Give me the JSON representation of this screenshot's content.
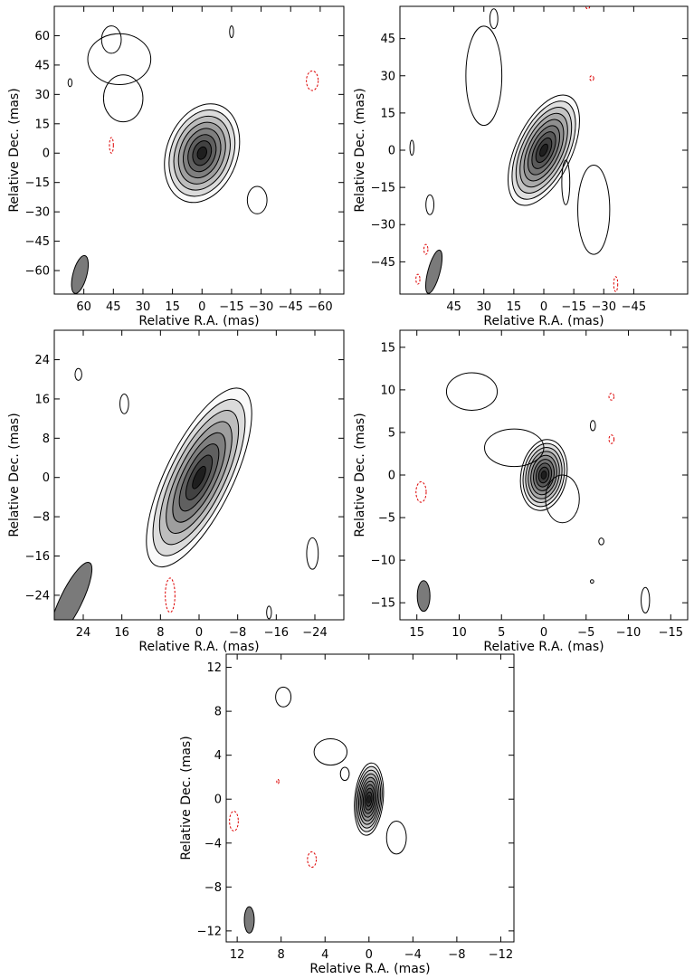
{
  "chart_data": [
    {
      "type": "contour",
      "xlabel": "Relative R.A. (mas)",
      "ylabel": "Relative Dec. (mas)",
      "xlim": [
        75,
        -72
      ],
      "ylim": [
        -72,
        75
      ],
      "x_ticks": [
        60,
        45,
        30,
        15,
        0,
        -15,
        -30,
        -45,
        -60
      ],
      "y_ticks": [
        60,
        45,
        30,
        15,
        0,
        -15,
        -30,
        -45,
        -60
      ],
      "x_tick_labels": [
        "60",
        "45",
        "30",
        "15",
        "0",
        "−15",
        "−30",
        "−45",
        "−60"
      ],
      "y_tick_labels": [
        "60",
        "45",
        "30",
        "15",
        "0",
        "−15",
        "−30",
        "−45",
        "−60"
      ],
      "core": {
        "x": 0,
        "y": 0,
        "semi_major": 26,
        "semi_minor": 18,
        "pa_deg": 20,
        "levels": 8
      },
      "contours": [
        {
          "x": 42,
          "y": 48,
          "rx": 16,
          "ry": 13
        },
        {
          "x": 46,
          "y": 58,
          "rx": 5,
          "ry": 7
        },
        {
          "x": 40,
          "y": 28,
          "rx": 10,
          "ry": 12
        },
        {
          "x": -28,
          "y": -24,
          "rx": 5,
          "ry": 7
        },
        {
          "x": 67,
          "y": 36,
          "rx": 1,
          "ry": 2
        },
        {
          "x": -15,
          "y": 62,
          "rx": 1,
          "ry": 3
        }
      ],
      "negative_contours": [
        {
          "x": 46,
          "y": 4,
          "rx": 1,
          "ry": 4
        },
        {
          "x": -56,
          "y": 37,
          "rx": 3,
          "ry": 5
        }
      ],
      "beam": {
        "x": 62,
        "y": -62,
        "major": 20,
        "minor": 7,
        "pa_deg": 15
      },
      "colors": {
        "contour": "#000000",
        "negative": "#dd0000",
        "beam": "#7a7a7a"
      }
    },
    {
      "type": "contour",
      "xlabel": "Relative R.A. (mas)",
      "ylabel": "Relative Dec. (mas)",
      "xlim": [
        72,
        -72
      ],
      "ylim": [
        -58,
        58
      ],
      "x_ticks": [
        45,
        30,
        15,
        0,
        -15,
        -30,
        -45
      ],
      "y_ticks": [
        45,
        30,
        15,
        0,
        -15,
        -30,
        -45
      ],
      "x_tick_labels": [
        "45",
        "30",
        "15",
        "0",
        "−15",
        "−30",
        "−45"
      ],
      "y_tick_labels": [
        "45",
        "30",
        "15",
        "0",
        "−15",
        "−30",
        "−45"
      ],
      "core": {
        "x": 0,
        "y": 0,
        "semi_major": 24,
        "semi_minor": 14,
        "pa_deg": 25,
        "levels": 9
      },
      "contours": [
        {
          "x": 30,
          "y": 30,
          "rx": 9,
          "ry": 20
        },
        {
          "x": 25,
          "y": 53,
          "rx": 2,
          "ry": 4
        },
        {
          "x": -25,
          "y": -24,
          "rx": 8,
          "ry": 18
        },
        {
          "x": -11,
          "y": -13,
          "rx": 2,
          "ry": 9
        },
        {
          "x": 57,
          "y": -22,
          "rx": 2,
          "ry": 4
        },
        {
          "x": 66,
          "y": 1,
          "rx": 1,
          "ry": 3
        }
      ],
      "negative_contours": [
        {
          "x": -24,
          "y": 29,
          "rx": 1,
          "ry": 1
        },
        {
          "x": -36,
          "y": -54,
          "rx": 1,
          "ry": 3
        },
        {
          "x": 59,
          "y": -40,
          "rx": 1,
          "ry": 2
        },
        {
          "x": 63,
          "y": -52,
          "rx": 1,
          "ry": 2
        },
        {
          "x": -22,
          "y": 58,
          "rx": 1,
          "ry": 1
        }
      ],
      "beam": {
        "x": 55,
        "y": -49,
        "major": 18,
        "minor": 6,
        "pa_deg": 15
      },
      "colors": {
        "contour": "#000000",
        "negative": "#dd0000",
        "beam": "#7a7a7a"
      }
    },
    {
      "type": "contour",
      "xlabel": "Relative R.A. (mas)",
      "ylabel": "Relative Dec. (mas)",
      "xlim": [
        30,
        -30
      ],
      "ylim": [
        -29,
        30
      ],
      "x_ticks": [
        24,
        16,
        8,
        0,
        -8,
        -16,
        -24
      ],
      "y_ticks": [
        24,
        16,
        8,
        0,
        -8,
        -16,
        -24
      ],
      "x_tick_labels": [
        "24",
        "16",
        "8",
        "0",
        "−8",
        "−16",
        "−24"
      ],
      "y_tick_labels": [
        "24",
        "16",
        "8",
        "0",
        "−8",
        "−16",
        "−24"
      ],
      "core": {
        "x": 0,
        "y": 0,
        "semi_major": 20,
        "semi_minor": 7,
        "pa_deg": 26,
        "levels": 8
      },
      "contours": [
        {
          "x": 25,
          "y": 21,
          "rx": 0.7,
          "ry": 1.2
        },
        {
          "x": 15.5,
          "y": 15,
          "rx": 0.9,
          "ry": 2
        },
        {
          "x": -23.5,
          "y": -15.5,
          "rx": 1.2,
          "ry": 3.2
        },
        {
          "x": -14.5,
          "y": -27.5,
          "rx": 0.5,
          "ry": 1.3
        }
      ],
      "negative_contours": [
        {
          "x": 6,
          "y": -24,
          "rx": 1,
          "ry": 3.5
        }
      ],
      "beam": {
        "x": 26.5,
        "y": -25,
        "major": 17,
        "minor": 4.5,
        "pa_deg": 26
      },
      "colors": {
        "contour": "#000000",
        "negative": "#dd0000",
        "beam": "#7a7a7a"
      }
    },
    {
      "type": "contour",
      "xlabel": "Relative R.A. (mas)",
      "ylabel": "Relative Dec. (mas)",
      "xlim": [
        17,
        -17
      ],
      "ylim": [
        -17,
        17
      ],
      "x_ticks": [
        15,
        10,
        5,
        0,
        -5,
        -10,
        -15
      ],
      "y_ticks": [
        15,
        10,
        5,
        0,
        -5,
        -10,
        -15
      ],
      "x_tick_labels": [
        "15",
        "10",
        "5",
        "0",
        "−5",
        "−10",
        "−15"
      ],
      "y_tick_labels": [
        "15",
        "10",
        "5",
        "0",
        "−5",
        "−10",
        "−15"
      ],
      "core": {
        "x": 0,
        "y": 0,
        "semi_major": 4.2,
        "semi_minor": 2.7,
        "pa_deg": 10,
        "levels": 9
      },
      "contours": [
        {
          "x": 3.5,
          "y": 3.2,
          "rx": 3.5,
          "ry": 2.2
        },
        {
          "x": 8.5,
          "y": 9.8,
          "rx": 3,
          "ry": 2.2
        },
        {
          "x": -2.2,
          "y": -2.8,
          "rx": 2,
          "ry": 2.8
        },
        {
          "x": -5.8,
          "y": 5.8,
          "rx": 0.3,
          "ry": 0.6
        },
        {
          "x": -6.8,
          "y": -7.8,
          "rx": 0.3,
          "ry": 0.4
        },
        {
          "x": -5.7,
          "y": -12.5,
          "rx": 0.2,
          "ry": 0.2
        },
        {
          "x": -12,
          "y": -14.7,
          "rx": 0.5,
          "ry": 1.5
        }
      ],
      "negative_contours": [
        {
          "x": 14.5,
          "y": -2,
          "rx": 0.6,
          "ry": 1.2
        },
        {
          "x": -8,
          "y": 9.2,
          "rx": 0.3,
          "ry": 0.4
        },
        {
          "x": -8,
          "y": 4.2,
          "rx": 0.3,
          "ry": 0.5
        }
      ],
      "beam": {
        "x": 14.2,
        "y": -14.2,
        "major": 3.6,
        "minor": 1.5,
        "pa_deg": 0
      },
      "colors": {
        "contour": "#000000",
        "negative": "#dd0000",
        "beam": "#7a7a7a"
      }
    },
    {
      "type": "contour",
      "xlabel": "Relative R.A. (mas)",
      "ylabel": "Relative Dec. (mas)",
      "xlim": [
        13,
        -13.2
      ],
      "ylim": [
        -13,
        13.2
      ],
      "x_ticks": [
        12,
        8,
        4,
        0,
        -4,
        -8,
        -12
      ],
      "y_ticks": [
        12,
        8,
        4,
        0,
        -4,
        -8,
        -12
      ],
      "x_tick_labels": [
        "12",
        "8",
        "4",
        "0",
        "−4",
        "−8",
        "−12"
      ],
      "y_tick_labels": [
        "12",
        "8",
        "4",
        "0",
        "−4",
        "−8",
        "−12"
      ],
      "core": {
        "x": 0,
        "y": 0,
        "semi_major": 3.3,
        "semi_minor": 1.3,
        "pa_deg": 5,
        "levels": 10
      },
      "contours": [
        {
          "x": 3.5,
          "y": 4.3,
          "rx": 1.5,
          "ry": 1.2
        },
        {
          "x": 7.8,
          "y": 9.3,
          "rx": 0.7,
          "ry": 0.9
        },
        {
          "x": 2.2,
          "y": 2.3,
          "rx": 0.4,
          "ry": 0.6
        },
        {
          "x": -2.5,
          "y": -3.5,
          "rx": 0.9,
          "ry": 1.5
        }
      ],
      "negative_contours": [
        {
          "x": 12.3,
          "y": -2,
          "rx": 0.4,
          "ry": 0.9
        },
        {
          "x": 5.2,
          "y": -5.5,
          "rx": 0.4,
          "ry": 0.7
        },
        {
          "x": 8.3,
          "y": 1.6,
          "rx": 0.1,
          "ry": 0.2
        }
      ],
      "beam": {
        "x": 10.9,
        "y": -11,
        "major": 2.4,
        "minor": 0.9,
        "pa_deg": 0
      },
      "colors": {
        "contour": "#000000",
        "negative": "#dd0000",
        "beam": "#7a7a7a"
      }
    }
  ]
}
